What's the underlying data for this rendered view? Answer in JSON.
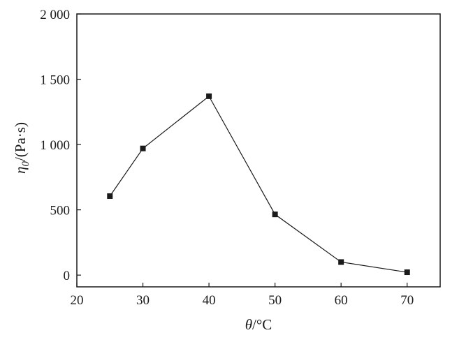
{
  "chart_data": {
    "type": "line",
    "title": "",
    "x": [
      25,
      30,
      40,
      50,
      60,
      70
    ],
    "series": [
      {
        "values": [
          605,
          970,
          1370,
          465,
          100,
          22
        ]
      }
    ],
    "xlim": [
      20,
      75
    ],
    "ylim": [
      -90,
      2000
    ],
    "xticks": [
      20,
      30,
      40,
      50,
      60,
      70
    ],
    "xtick_labels": [
      "20",
      "30",
      "40",
      "50",
      "60",
      "70"
    ],
    "yticks": [
      0,
      500,
      1000,
      1500,
      2000
    ],
    "ytick_labels": [
      "0",
      "500",
      "1 000",
      "1 500",
      "2 000"
    ],
    "xlabel": {
      "symbol": "θ",
      "unit": "/°C"
    },
    "ylabel": {
      "symbol": "η",
      "subscript": "0",
      "unit": "/(Pa·s)"
    },
    "grid": false,
    "marker": "square",
    "color": "#1a1a1a"
  }
}
